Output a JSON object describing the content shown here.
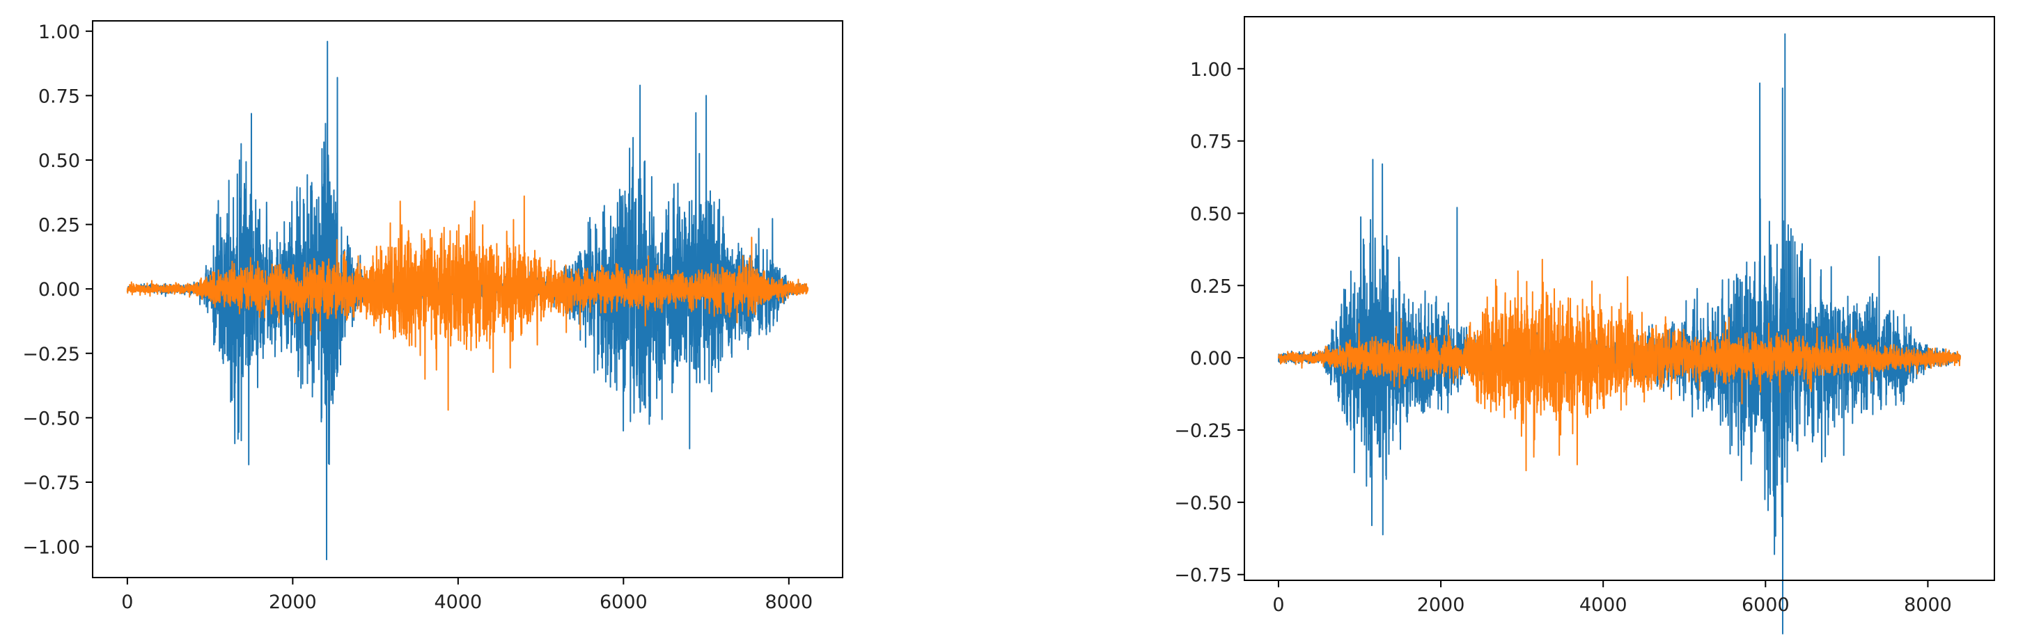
{
  "chart_data": [
    {
      "type": "line",
      "title": "",
      "xlabel": "",
      "ylabel": "",
      "xlim": [
        -420,
        8650
      ],
      "ylim": [
        -1.12,
        1.04
      ],
      "xticks": [
        0,
        2000,
        4000,
        6000,
        8000
      ],
      "xtick_labels": [
        "0",
        "2000",
        "4000",
        "6000",
        "8000"
      ],
      "yticks": [
        1.0,
        0.75,
        0.5,
        0.25,
        0.0,
        -0.25,
        -0.5,
        -0.75,
        -1.0
      ],
      "ytick_labels": [
        "1.00",
        "0.75",
        "0.50",
        "0.25",
        "0.00",
        "−0.25",
        "−0.50",
        "−0.75",
        "−1.00"
      ],
      "grid": false,
      "legend": "none",
      "series": [
        {
          "color": "#1f77b4",
          "n_samples": 8230,
          "envelope": [
            [
              0,
              0.02
            ],
            [
              850,
              0.03
            ],
            [
              1000,
              0.15
            ],
            [
              1150,
              0.45
            ],
            [
              1250,
              0.6
            ],
            [
              1400,
              0.72
            ],
            [
              1550,
              0.45
            ],
            [
              1700,
              0.35
            ],
            [
              1850,
              0.3
            ],
            [
              2000,
              0.42
            ],
            [
              2150,
              0.55
            ],
            [
              2300,
              0.65
            ],
            [
              2420,
              0.96
            ],
            [
              2550,
              0.5
            ],
            [
              2700,
              0.2
            ],
            [
              2850,
              0.08
            ],
            [
              3000,
              0.05
            ],
            [
              5000,
              0.05
            ],
            [
              5300,
              0.12
            ],
            [
              5600,
              0.3
            ],
            [
              5800,
              0.45
            ],
            [
              6000,
              0.55
            ],
            [
              6200,
              0.78
            ],
            [
              6400,
              0.55
            ],
            [
              6600,
              0.5
            ],
            [
              6800,
              0.45
            ],
            [
              7000,
              0.72
            ],
            [
              7200,
              0.4
            ],
            [
              7500,
              0.3
            ],
            [
              7800,
              0.22
            ],
            [
              8000,
              0.04
            ],
            [
              8230,
              0.02
            ]
          ],
          "peaks": [
            [
              2420,
              0.96
            ],
            [
              2410,
              -1.05
            ],
            [
              6200,
              0.79
            ],
            [
              7000,
              0.75
            ],
            [
              1300,
              -0.6
            ],
            [
              6800,
              -0.62
            ],
            [
              1500,
              0.68
            ],
            [
              2540,
              0.82
            ]
          ]
        },
        {
          "color": "#ff7f0e",
          "n_samples": 8230,
          "envelope": [
            [
              0,
              0.025
            ],
            [
              800,
              0.03
            ],
            [
              1000,
              0.08
            ],
            [
              1500,
              0.14
            ],
            [
              2000,
              0.12
            ],
            [
              2500,
              0.18
            ],
            [
              2900,
              0.13
            ],
            [
              3100,
              0.25
            ],
            [
              3500,
              0.3
            ],
            [
              3900,
              0.32
            ],
            [
              4300,
              0.3
            ],
            [
              4700,
              0.25
            ],
            [
              5000,
              0.17
            ],
            [
              5500,
              0.12
            ],
            [
              6000,
              0.1
            ],
            [
              6500,
              0.1
            ],
            [
              7000,
              0.1
            ],
            [
              7500,
              0.15
            ],
            [
              7800,
              0.06
            ],
            [
              8230,
              0.03
            ]
          ],
          "peaks": [
            [
              3880,
              -0.47
            ],
            [
              4800,
              0.36
            ],
            [
              3300,
              0.34
            ],
            [
              4200,
              0.34
            ],
            [
              3600,
              -0.35
            ],
            [
              7550,
              0.2
            ]
          ]
        }
      ]
    },
    {
      "type": "line",
      "title": "",
      "xlabel": "",
      "ylabel": "",
      "xlim": [
        -420,
        8820
      ],
      "ylim": [
        -0.77,
        1.18
      ],
      "xticks": [
        0,
        2000,
        4000,
        6000,
        8000
      ],
      "xtick_labels": [
        "0",
        "2000",
        "4000",
        "6000",
        "8000"
      ],
      "yticks": [
        1.0,
        0.75,
        0.5,
        0.25,
        0.0,
        -0.25,
        -0.5,
        -0.75
      ],
      "ytick_labels": [
        "1.00",
        "0.75",
        "0.50",
        "0.25",
        "0.00",
        "−0.25",
        "−0.50",
        "−0.75"
      ],
      "grid": false,
      "legend": "none",
      "series": [
        {
          "color": "#1f77b4",
          "n_samples": 8400,
          "envelope": [
            [
              0,
              0.02
            ],
            [
              550,
              0.03
            ],
            [
              700,
              0.15
            ],
            [
              850,
              0.4
            ],
            [
              1000,
              0.55
            ],
            [
              1200,
              0.65
            ],
            [
              1400,
              0.45
            ],
            [
              1600,
              0.3
            ],
            [
              1800,
              0.25
            ],
            [
              2000,
              0.22
            ],
            [
              2200,
              0.15
            ],
            [
              2400,
              0.1
            ],
            [
              2600,
              0.07
            ],
            [
              4300,
              0.07
            ],
            [
              4800,
              0.15
            ],
            [
              5200,
              0.2
            ],
            [
              5500,
              0.35
            ],
            [
              5800,
              0.5
            ],
            [
              6000,
              0.6
            ],
            [
              6200,
              0.75
            ],
            [
              6400,
              0.45
            ],
            [
              6700,
              0.35
            ],
            [
              7000,
              0.3
            ],
            [
              7300,
              0.25
            ],
            [
              7700,
              0.2
            ],
            [
              7900,
              0.08
            ],
            [
              8400,
              0.02
            ]
          ],
          "peaks": [
            [
              6240,
              1.12
            ],
            [
              5930,
              0.95
            ],
            [
              6110,
              -0.68
            ],
            [
              1150,
              -0.58
            ],
            [
              1280,
              0.67
            ],
            [
              2200,
              0.52
            ],
            [
              7400,
              0.35
            ]
          ]
        },
        {
          "color": "#ff7f0e",
          "n_samples": 8400,
          "envelope": [
            [
              0,
              0.025
            ],
            [
              600,
              0.03
            ],
            [
              800,
              0.07
            ],
            [
              1200,
              0.1
            ],
            [
              1800,
              0.09
            ],
            [
              2300,
              0.1
            ],
            [
              2600,
              0.25
            ],
            [
              3000,
              0.3
            ],
            [
              3400,
              0.3
            ],
            [
              3800,
              0.25
            ],
            [
              4200,
              0.2
            ],
            [
              4600,
              0.15
            ],
            [
              5000,
              0.12
            ],
            [
              6000,
              0.1
            ],
            [
              7000,
              0.08
            ],
            [
              7800,
              0.05
            ],
            [
              8400,
              0.03
            ]
          ],
          "peaks": [
            [
              3250,
              0.34
            ],
            [
              3680,
              -0.37
            ],
            [
              3050,
              -0.39
            ],
            [
              4300,
              0.28
            ],
            [
              2950,
              0.3
            ]
          ]
        }
      ]
    }
  ]
}
